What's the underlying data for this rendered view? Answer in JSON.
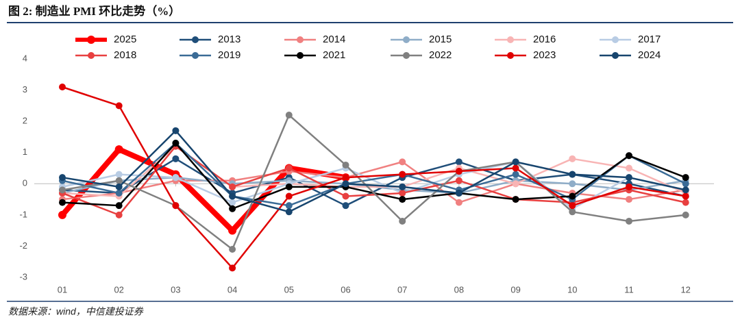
{
  "chart_data": {
    "type": "line",
    "title": "图 2: 制造业 PMI 环比走势（%）",
    "source": "数据来源：wind，中信建投证券",
    "categories": [
      "01",
      "02",
      "03",
      "04",
      "05",
      "06",
      "07",
      "08",
      "09",
      "10",
      "11",
      "12"
    ],
    "ylim": [
      -3,
      4
    ],
    "yticks": [
      -3,
      -2,
      -1,
      0,
      1,
      2,
      3,
      4
    ],
    "series": [
      {
        "name": "2025",
        "color": "#ff0000",
        "values": [
          -1.0,
          1.1,
          0.3,
          -1.5,
          0.5,
          0.2,
          null,
          null,
          null,
          null,
          null,
          null
        ]
      },
      {
        "name": "2013",
        "color": "#1f4e79",
        "values": [
          -0.2,
          -0.3,
          0.8,
          -0.3,
          0.2,
          -0.7,
          0.2,
          0.7,
          0.1,
          0.3,
          0.0,
          -0.4
        ]
      },
      {
        "name": "2014",
        "color": "#f08080",
        "values": [
          -0.5,
          -0.3,
          0.1,
          0.1,
          0.4,
          0.2,
          0.7,
          -0.6,
          0.0,
          -0.3,
          -0.5,
          -0.2
        ]
      },
      {
        "name": "2015",
        "color": "#8fadc8",
        "values": [
          -0.3,
          0.1,
          0.2,
          0.0,
          0.1,
          0.0,
          -0.2,
          -0.3,
          0.1,
          0.0,
          -0.2,
          0.1
        ]
      },
      {
        "name": "2016",
        "color": "#f8b4b4",
        "values": [
          -0.3,
          -0.4,
          1.2,
          -0.1,
          0.0,
          -0.1,
          -0.1,
          0.5,
          0.0,
          0.8,
          0.5,
          -0.3
        ]
      },
      {
        "name": "2017",
        "color": "#b8cce4",
        "values": [
          -0.1,
          0.3,
          0.2,
          -0.6,
          0.0,
          0.5,
          -0.3,
          0.3,
          0.7,
          -0.8,
          0.2,
          -0.2
        ]
      },
      {
        "name": "2018",
        "color": "#e84040",
        "values": [
          -0.3,
          -1.0,
          1.2,
          -0.1,
          0.5,
          -0.4,
          -0.3,
          0.1,
          -0.5,
          -0.6,
          -0.2,
          -0.6
        ]
      },
      {
        "name": "2019",
        "color": "#3a6b96",
        "values": [
          0.1,
          -0.3,
          1.3,
          -0.4,
          -0.7,
          0.0,
          0.3,
          -0.2,
          0.3,
          -0.5,
          0.9,
          0.0
        ]
      },
      {
        "name": "2021",
        "color": "#000000",
        "values": [
          -0.6,
          -0.7,
          1.3,
          -0.8,
          -0.1,
          -0.1,
          -0.5,
          -0.3,
          -0.5,
          -0.4,
          0.9,
          0.2
        ]
      },
      {
        "name": "2022",
        "color": "#808080",
        "values": [
          -0.2,
          0.1,
          -0.7,
          -2.1,
          2.2,
          0.6,
          -1.2,
          0.4,
          0.7,
          -0.9,
          -1.2,
          -1.0
        ]
      },
      {
        "name": "2023",
        "color": "#e00000",
        "values": [
          3.1,
          2.5,
          -0.7,
          -2.7,
          -0.4,
          0.2,
          0.3,
          0.4,
          0.5,
          -0.7,
          -0.1,
          -0.4
        ]
      },
      {
        "name": "2024",
        "color": "#17456e",
        "values": [
          0.2,
          -0.1,
          1.7,
          -0.4,
          -0.9,
          0.0,
          -0.1,
          -0.3,
          0.7,
          0.3,
          0.2,
          -0.2
        ]
      }
    ]
  }
}
